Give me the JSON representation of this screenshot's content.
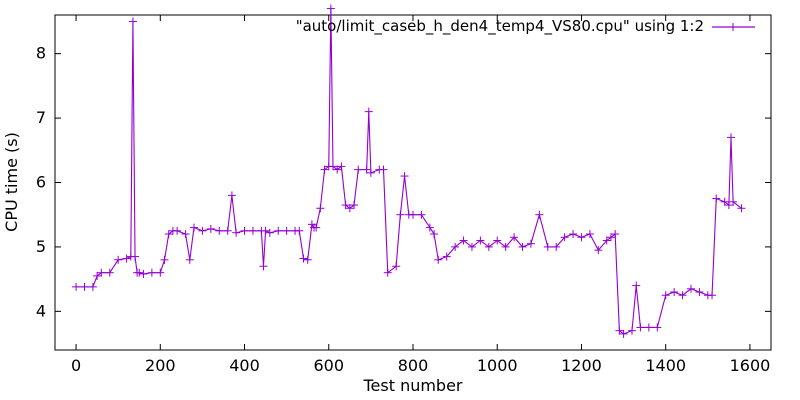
{
  "chart_data": {
    "type": "line",
    "xlabel": "Test number",
    "ylabel": "CPU time (s)",
    "xlim": [
      -50,
      1650
    ],
    "ylim": [
      3.4,
      8.6
    ],
    "xticks": [
      0,
      200,
      400,
      600,
      800,
      1000,
      1200,
      1400,
      1600
    ],
    "yticks": [
      4,
      5,
      6,
      7,
      8
    ],
    "grid": false,
    "legend_position": "top-right",
    "series": [
      {
        "name": "\"auto/limit_caseb_h_den4_temp4_VS80.cpu\" using 1:2",
        "color": "#9400d3",
        "marker": "plus",
        "x": [
          0,
          20,
          40,
          50,
          60,
          80,
          100,
          120,
          130,
          135,
          140,
          145,
          150,
          160,
          180,
          200,
          210,
          220,
          230,
          240,
          260,
          270,
          280,
          300,
          320,
          340,
          360,
          370,
          380,
          400,
          420,
          440,
          445,
          450,
          460,
          480,
          500,
          520,
          530,
          540,
          550,
          560,
          565,
          570,
          580,
          590,
          600,
          605,
          610,
          620,
          630,
          640,
          650,
          660,
          670,
          690,
          695,
          700,
          720,
          730,
          740,
          760,
          770,
          780,
          790,
          800,
          820,
          840,
          850,
          860,
          880,
          900,
          920,
          940,
          960,
          980,
          1000,
          1020,
          1040,
          1060,
          1080,
          1100,
          1120,
          1140,
          1160,
          1180,
          1200,
          1220,
          1240,
          1260,
          1270,
          1280,
          1290,
          1300,
          1320,
          1330,
          1340,
          1360,
          1380,
          1400,
          1420,
          1440,
          1460,
          1480,
          1500,
          1510,
          1520,
          1540,
          1550,
          1555,
          1560,
          1580
        ],
        "values": [
          4.38,
          4.38,
          4.38,
          4.55,
          4.6,
          4.6,
          4.8,
          4.82,
          4.85,
          8.5,
          4.85,
          4.6,
          4.6,
          4.58,
          4.6,
          4.6,
          4.8,
          5.2,
          5.25,
          5.25,
          5.2,
          4.8,
          5.3,
          5.25,
          5.28,
          5.25,
          5.25,
          5.8,
          5.22,
          5.25,
          5.25,
          5.25,
          4.7,
          5.25,
          5.22,
          5.25,
          5.25,
          5.25,
          5.25,
          4.82,
          4.8,
          5.35,
          5.3,
          5.3,
          5.6,
          6.2,
          6.25,
          8.7,
          6.25,
          6.2,
          6.25,
          5.65,
          5.6,
          5.65,
          6.2,
          6.2,
          7.1,
          6.15,
          6.2,
          6.2,
          4.6,
          4.7,
          5.5,
          6.1,
          5.5,
          5.5,
          5.5,
          5.3,
          5.2,
          4.8,
          4.85,
          5.0,
          5.1,
          5.0,
          5.1,
          5.0,
          5.1,
          5.0,
          5.15,
          5.0,
          5.05,
          5.5,
          5.0,
          5.0,
          5.15,
          5.2,
          5.15,
          5.2,
          4.95,
          5.1,
          5.15,
          5.2,
          3.7,
          3.65,
          3.7,
          4.4,
          3.75,
          3.75,
          3.75,
          4.25,
          4.3,
          4.25,
          4.35,
          4.3,
          4.25,
          4.25,
          5.75,
          5.7,
          5.65,
          6.7,
          5.7,
          5.6
        ]
      }
    ]
  }
}
